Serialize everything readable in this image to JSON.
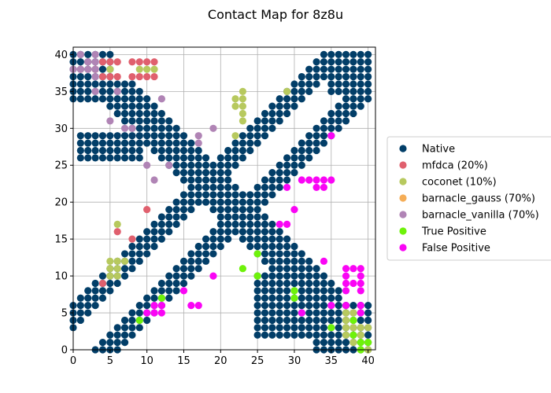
{
  "chart_data": {
    "type": "scatter",
    "title": "Contact Map for 8z8u",
    "xlabel": "",
    "ylabel": "",
    "xlim": [
      0,
      41
    ],
    "ylim": [
      0,
      41
    ],
    "xticks": [
      0,
      5,
      10,
      15,
      20,
      25,
      30,
      35,
      40
    ],
    "yticks": [
      0,
      5,
      10,
      15,
      20,
      25,
      30,
      35,
      40
    ],
    "grid": true,
    "legend_position": "right",
    "series": [
      {
        "name": "Native",
        "color": "#023e68",
        "regions": [
          {
            "kind": "diagonal",
            "offset_min": 3,
            "offset_max": 6,
            "from": 0,
            "to": 41
          },
          {
            "kind": "antidiagonal",
            "sum_min": 38,
            "sum_max": 44,
            "from": 5,
            "to": 36
          },
          {
            "kind": "block",
            "x": [
              0,
              5
            ],
            "y": [
              34,
              40
            ]
          },
          {
            "kind": "block",
            "x": [
              1,
              9
            ],
            "y": [
              26,
              29
            ]
          },
          {
            "kind": "block",
            "x": [
              25,
              32
            ],
            "y": [
              2,
              10
            ]
          },
          {
            "kind": "block",
            "x": [
              33,
              40
            ],
            "y": [
              0,
              6
            ]
          },
          {
            "kind": "block",
            "x": [
              35,
              40
            ],
            "y": [
              35,
              40
            ]
          }
        ]
      },
      {
        "name": "mfdca (20%)",
        "color": "#e0606e",
        "points": [
          [
            1,
            38
          ],
          [
            2,
            39
          ],
          [
            3,
            38
          ],
          [
            4,
            39
          ],
          [
            5,
            39
          ],
          [
            6,
            39
          ],
          [
            4,
            37
          ],
          [
            5,
            37
          ],
          [
            6,
            37
          ],
          [
            8,
            39
          ],
          [
            9,
            39
          ],
          [
            10,
            39
          ],
          [
            11,
            39
          ],
          [
            8,
            37
          ],
          [
            9,
            37
          ],
          [
            10,
            37
          ],
          [
            11,
            37
          ],
          [
            6,
            16
          ],
          [
            10,
            19
          ],
          [
            8,
            15
          ],
          [
            4,
            9
          ],
          [
            3,
            38
          ]
        ]
      },
      {
        "name": "coconet (10%)",
        "color": "#b7c95e",
        "points": [
          [
            5,
            38
          ],
          [
            9,
            38
          ],
          [
            10,
            38
          ],
          [
            11,
            38
          ],
          [
            22,
            33
          ],
          [
            22,
            34
          ],
          [
            23,
            33
          ],
          [
            23,
            34
          ],
          [
            23,
            35
          ],
          [
            23,
            32
          ],
          [
            23,
            31
          ],
          [
            22,
            29
          ],
          [
            29,
            35
          ],
          [
            6,
            17
          ],
          [
            5,
            12
          ],
          [
            6,
            12
          ],
          [
            7,
            12
          ],
          [
            5,
            11
          ],
          [
            6,
            11
          ],
          [
            5,
            10
          ],
          [
            6,
            10
          ],
          [
            37,
            5
          ],
          [
            38,
            5
          ],
          [
            37,
            4
          ],
          [
            38,
            4
          ],
          [
            37,
            3
          ],
          [
            38,
            3
          ],
          [
            39,
            3
          ],
          [
            40,
            3
          ],
          [
            38,
            2
          ],
          [
            39,
            2
          ],
          [
            38,
            1
          ],
          [
            39,
            1
          ],
          [
            40,
            1
          ],
          [
            39,
            0
          ],
          [
            40,
            0
          ],
          [
            37,
            2
          ]
        ]
      },
      {
        "name": "barnacle_gauss (70%)",
        "color": "#f5ad56",
        "points": []
      },
      {
        "name": "barnacle_vanilla (70%)",
        "color": "#b084b5",
        "points": [
          [
            1,
            40
          ],
          [
            3,
            40
          ],
          [
            2,
            39
          ],
          [
            3,
            39
          ],
          [
            0,
            38
          ],
          [
            1,
            38
          ],
          [
            2,
            38
          ],
          [
            3,
            38
          ],
          [
            3,
            37
          ],
          [
            6,
            35
          ],
          [
            3,
            35
          ],
          [
            12,
            34
          ],
          [
            5,
            31
          ],
          [
            8,
            30
          ],
          [
            7,
            30
          ],
          [
            19,
            30
          ],
          [
            17,
            29
          ],
          [
            17,
            28
          ],
          [
            10,
            25
          ],
          [
            13,
            25
          ],
          [
            11,
            23
          ]
        ]
      },
      {
        "name": "True Positive",
        "color": "#6ef20a",
        "points": [
          [
            9,
            4
          ],
          [
            12,
            7
          ],
          [
            23,
            11
          ],
          [
            25,
            13
          ],
          [
            25,
            10
          ],
          [
            30,
            8
          ],
          [
            30,
            7
          ],
          [
            35,
            3
          ],
          [
            38,
            4
          ],
          [
            38,
            2
          ],
          [
            39,
            1
          ],
          [
            40,
            1
          ],
          [
            39,
            0
          ]
        ]
      },
      {
        "name": "False Positive",
        "color": "#fa05f5",
        "points": [
          [
            35,
            29
          ],
          [
            29,
            22
          ],
          [
            31,
            23
          ],
          [
            32,
            23
          ],
          [
            33,
            23
          ],
          [
            34,
            23
          ],
          [
            35,
            23
          ],
          [
            33,
            22
          ],
          [
            34,
            22
          ],
          [
            30,
            19
          ],
          [
            28,
            17
          ],
          [
            29,
            17
          ],
          [
            34,
            12
          ],
          [
            19,
            10
          ],
          [
            15,
            8
          ],
          [
            16,
            6
          ],
          [
            17,
            6
          ],
          [
            11,
            6
          ],
          [
            12,
            6
          ],
          [
            10,
            5
          ],
          [
            11,
            5
          ],
          [
            12,
            5
          ],
          [
            31,
            5
          ],
          [
            35,
            6
          ],
          [
            37,
            11
          ],
          [
            38,
            11
          ],
          [
            39,
            11
          ],
          [
            37,
            10
          ],
          [
            39,
            10
          ],
          [
            37,
            9
          ],
          [
            38,
            9
          ],
          [
            39,
            9
          ],
          [
            37,
            8
          ],
          [
            39,
            8
          ],
          [
            37,
            6
          ],
          [
            39,
            6
          ],
          [
            39,
            5
          ]
        ]
      }
    ]
  }
}
